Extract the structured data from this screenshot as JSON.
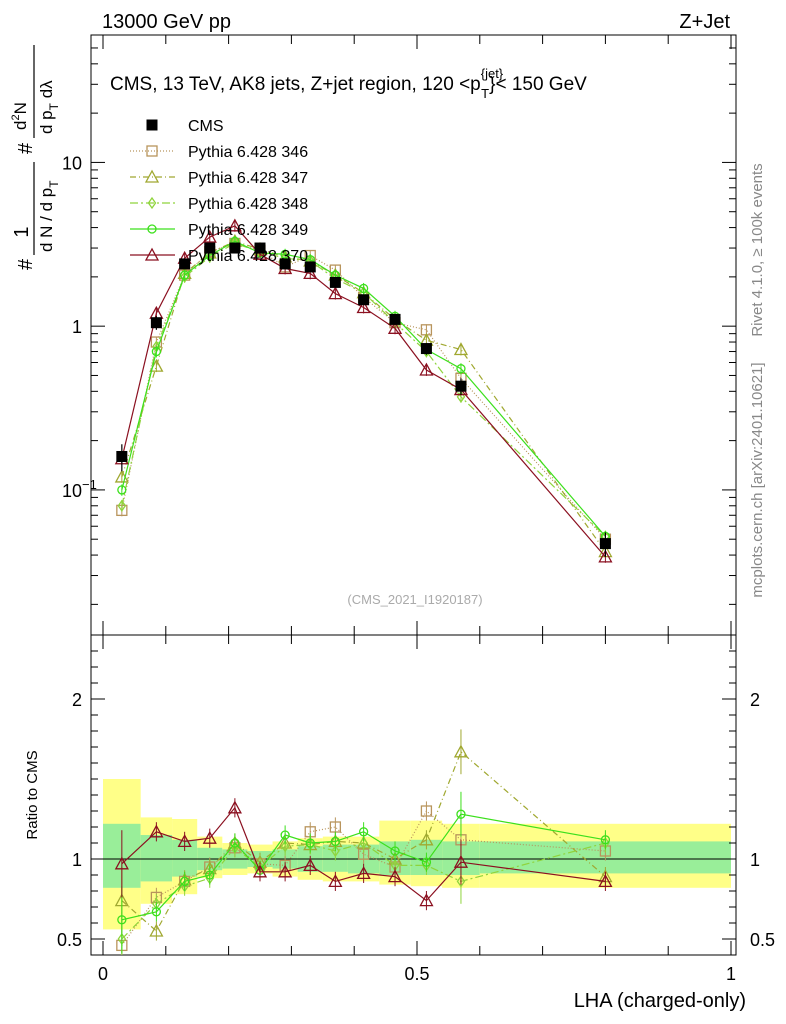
{
  "header": {
    "left": "13000 GeV pp",
    "right": "Z+Jet"
  },
  "plot_title": "CMS, 13 TeV, AK8 jets, Z+jet region, 120 <p",
  "plot_title_sup": "{jet}",
  "plot_title_sub": "T",
  "plot_title_end": "}< 150 GeV",
  "y_axis_label": {
    "prefix": "#",
    "num": "1",
    "den": "d N / d p",
    "den_sub": "T",
    "hash": "#",
    "main_num": "d",
    "main_num_sup": "2",
    "main_num_rest": "N",
    "main_den": "d p",
    "main_den_sub": "T",
    "main_den_rest": " dλ"
  },
  "side_labels": {
    "rivet": "Rivet 4.1.0, ≥ 100k events",
    "mcplots": "mcplots.cern.ch [arXiv:2401.10621]"
  },
  "watermark": "(CMS_2021_I1920187)",
  "ratio_ylabel": "Ratio to CMS",
  "x_axis_label": "LHA (charged-only)",
  "colors": {
    "cms": "#000000",
    "p346": "#b8945c",
    "p347": "#a0a830",
    "p348": "#8fd43c",
    "p349": "#3ce01c",
    "p370": "#8b1020",
    "band_outer": "#ffff88",
    "band_inner": "#99ee99"
  },
  "chart_data": [
    {
      "type": "scatter",
      "title": "CMS, 13 TeV, AK8 jets, Z+jet region, 120 < p_T^{jet} < 150 GeV",
      "xlabel": "LHA (charged-only)",
      "ylabel": "1 / (dN/dp_T) d2N/(dp_T dλ)",
      "yscale": "log",
      "xlim": [
        0,
        1
      ],
      "ylim": [
        0.013,
        60
      ],
      "x_ticks": [
        "0",
        "0.5",
        "1"
      ],
      "y_ticks": [
        "10^-1",
        "1",
        "10"
      ],
      "x": [
        0.03,
        0.085,
        0.13,
        0.17,
        0.21,
        0.25,
        0.29,
        0.33,
        0.37,
        0.415,
        0.465,
        0.515,
        0.57,
        0.8
      ],
      "series": [
        {
          "name": "CMS",
          "marker": "filled-square",
          "values": [
            0.16,
            1.05,
            2.4,
            3.0,
            3.0,
            3.0,
            2.4,
            2.3,
            1.85,
            1.45,
            1.1,
            0.73,
            0.43,
            0.047
          ],
          "errors": [
            0.03,
            0.1,
            0.15,
            0.15,
            0.15,
            0.15,
            0.12,
            0.12,
            0.1,
            0.08,
            0.07,
            0.06,
            0.05,
            0.008
          ]
        },
        {
          "name": "Pythia 6.428 346",
          "marker": "open-square",
          "values": [
            0.075,
            0.8,
            2.05,
            2.85,
            3.2,
            2.9,
            2.3,
            2.7,
            2.2,
            1.5,
            1.05,
            0.95,
            0.48,
            0.05
          ]
        },
        {
          "name": "Pythia 6.428 347",
          "marker": "open-triangle",
          "values": [
            0.12,
            0.57,
            2.1,
            2.8,
            3.3,
            2.95,
            2.65,
            2.5,
            2.05,
            1.6,
            1.1,
            0.82,
            0.72,
            0.042
          ]
        },
        {
          "name": "Pythia 6.428 348",
          "marker": "open-diamond",
          "values": [
            0.08,
            0.75,
            2.0,
            2.65,
            3.2,
            2.85,
            2.6,
            2.5,
            1.95,
            1.6,
            1.05,
            0.7,
            0.37,
            0.052
          ]
        },
        {
          "name": "Pythia 6.428 349",
          "marker": "open-circle",
          "values": [
            0.1,
            0.7,
            2.05,
            2.7,
            3.3,
            2.8,
            2.75,
            2.55,
            2.05,
            1.7,
            1.15,
            0.72,
            0.55,
            0.052
          ]
        },
        {
          "name": "Pythia 6.428 370",
          "marker": "open-triangle",
          "values": [
            0.155,
            1.2,
            2.6,
            3.5,
            4.1,
            2.75,
            2.25,
            2.1,
            1.58,
            1.3,
            0.97,
            0.54,
            0.41,
            0.039
          ]
        }
      ]
    },
    {
      "type": "scatter",
      "ylabel": "Ratio to CMS",
      "xlabel": "LHA (charged-only)",
      "xlim": [
        0,
        1
      ],
      "ylim": [
        0.4,
        2.4
      ],
      "y_ticks": [
        "0.5",
        "1",
        "2"
      ],
      "x_ticks": [
        "0",
        "0.5",
        "1"
      ],
      "bins": [
        [
          0,
          0.06
        ],
        [
          0.06,
          0.11
        ],
        [
          0.11,
          0.15
        ],
        [
          0.15,
          0.19
        ],
        [
          0.19,
          0.23
        ],
        [
          0.23,
          0.27
        ],
        [
          0.27,
          0.31
        ],
        [
          0.31,
          0.35
        ],
        [
          0.35,
          0.39
        ],
        [
          0.39,
          0.44
        ],
        [
          0.44,
          0.49
        ],
        [
          0.49,
          0.54
        ],
        [
          0.54,
          0.6
        ],
        [
          0.6,
          1.0
        ]
      ],
      "band_outer": [
        [
          0.56,
          1.5
        ],
        [
          0.72,
          1.26
        ],
        [
          0.78,
          1.25
        ],
        [
          0.88,
          1.14
        ],
        [
          0.9,
          1.1
        ],
        [
          0.91,
          1.09
        ],
        [
          0.89,
          1.11
        ],
        [
          0.87,
          1.13
        ],
        [
          0.86,
          1.14
        ],
        [
          0.86,
          1.14
        ],
        [
          0.84,
          1.24
        ],
        [
          0.83,
          1.24
        ],
        [
          0.82,
          1.22
        ],
        [
          0.82,
          1.22
        ]
      ],
      "band_inner": [
        [
          0.82,
          1.22
        ],
        [
          0.86,
          1.15
        ],
        [
          0.89,
          1.12
        ],
        [
          0.93,
          1.07
        ],
        [
          0.94,
          1.06
        ],
        [
          0.95,
          1.05
        ],
        [
          0.94,
          1.06
        ],
        [
          0.92,
          1.08
        ],
        [
          0.92,
          1.09
        ],
        [
          0.91,
          1.09
        ],
        [
          0.9,
          1.11
        ],
        [
          0.9,
          1.12
        ],
        [
          0.9,
          1.11
        ],
        [
          0.91,
          1.11
        ]
      ],
      "x": [
        0.03,
        0.085,
        0.13,
        0.17,
        0.21,
        0.25,
        0.29,
        0.33,
        0.37,
        0.415,
        0.465,
        0.515,
        0.57,
        0.8
      ],
      "series": [
        {
          "name": "Pythia 6.428 346",
          "values": [
            0.46,
            0.76,
            0.86,
            0.95,
            1.07,
            0.97,
            0.96,
            1.17,
            1.2,
            1.03,
            0.95,
            1.3,
            1.12,
            1.05
          ]
        },
        {
          "name": "Pythia 6.428 347",
          "values": [
            0.74,
            0.55,
            0.87,
            0.94,
            1.1,
            0.98,
            1.1,
            1.09,
            1.11,
            1.1,
            1.0,
            1.12,
            1.67,
            0.89
          ]
        },
        {
          "name": "Pythia 6.428 348",
          "values": [
            0.5,
            0.72,
            0.83,
            0.88,
            1.07,
            0.95,
            1.08,
            1.09,
            1.05,
            1.1,
            0.96,
            0.96,
            0.86,
            1.1
          ]
        },
        {
          "name": "Pythia 6.428 349",
          "values": [
            0.62,
            0.67,
            0.86,
            0.9,
            1.1,
            0.93,
            1.15,
            1.1,
            1.11,
            1.17,
            1.05,
            0.98,
            1.28,
            1.12
          ]
        },
        {
          "name": "Pythia 6.428 370",
          "values": [
            0.97,
            1.17,
            1.11,
            1.13,
            1.32,
            0.92,
            0.92,
            0.96,
            0.86,
            0.91,
            0.89,
            0.74,
            0.98,
            0.86
          ]
        }
      ]
    }
  ]
}
